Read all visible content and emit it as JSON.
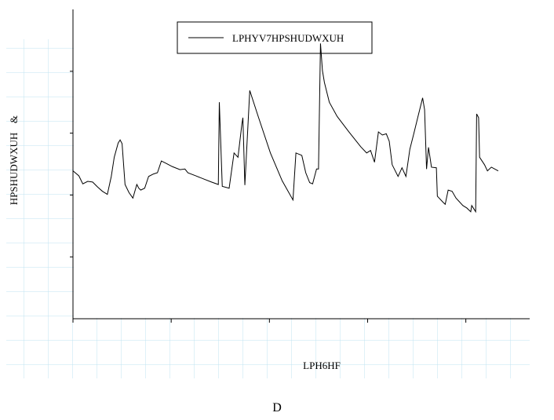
{
  "chart_data": {
    "type": "line",
    "x_label": "LPH6HF",
    "y_label": "HPSHUDWXUH",
    "y_label_mark": "&",
    "caption": "D",
    "xlim": [
      0,
      4.65
    ],
    "xticks": [
      0,
      1,
      2,
      3,
      4
    ],
    "ylim": [
      0,
      5
    ],
    "yticks": [
      1,
      2,
      3,
      4
    ],
    "legend": "top",
    "series": [
      {
        "name": "LPHYV7HPSHUDWXUH",
        "color": "#000000",
        "x": [
          0,
          0.06,
          0.1,
          0.15,
          0.2,
          0.25,
          0.3,
          0.35,
          0.39,
          0.42,
          0.46,
          0.48,
          0.5,
          0.53,
          0.57,
          0.61,
          0.65,
          0.67,
          0.69,
          0.73,
          0.77,
          0.82,
          0.86,
          0.9,
          0.95,
          1.01,
          1.09,
          1.14,
          1.17,
          1.25,
          1.33,
          1.41,
          1.48,
          1.49,
          1.52,
          1.59,
          1.64,
          1.68,
          1.72,
          1.73,
          1.75,
          1.8,
          1.89,
          2.01,
          2.13,
          2.24,
          2.27,
          2.33,
          2.37,
          2.41,
          2.44,
          2.48,
          2.5,
          2.52,
          2.54,
          2.56,
          2.61,
          2.69,
          2.81,
          2.93,
          2.99,
          3.03,
          3.07,
          3.11,
          3.15,
          3.19,
          3.22,
          3.25,
          3.31,
          3.35,
          3.39,
          3.43,
          3.47,
          3.51,
          3.56,
          3.58,
          3.6,
          3.62,
          3.65,
          3.7,
          3.71,
          3.77,
          3.79,
          3.82,
          3.86,
          3.9,
          3.97,
          4.01,
          4.05,
          4.06,
          4.1,
          4.11,
          4.13,
          4.14,
          4.19,
          4.22,
          4.26,
          4.33
        ],
        "values": [
          2.39,
          2.31,
          2.18,
          2.22,
          2.21,
          2.13,
          2.06,
          2.01,
          2.3,
          2.61,
          2.84,
          2.89,
          2.83,
          2.17,
          2.04,
          1.95,
          2.17,
          2.11,
          2.08,
          2.11,
          2.3,
          2.34,
          2.36,
          2.55,
          2.51,
          2.46,
          2.41,
          2.42,
          2.36,
          2.31,
          2.26,
          2.21,
          2.17,
          3.5,
          2.14,
          2.11,
          2.68,
          2.61,
          3.15,
          3.25,
          2.16,
          3.69,
          3.25,
          2.68,
          2.23,
          1.92,
          2.68,
          2.64,
          2.36,
          2.2,
          2.18,
          2.42,
          2.42,
          4.45,
          4.01,
          3.82,
          3.5,
          3.27,
          3.02,
          2.78,
          2.68,
          2.72,
          2.53,
          3.02,
          2.97,
          2.99,
          2.87,
          2.49,
          2.3,
          2.44,
          2.3,
          2.74,
          2.99,
          3.25,
          3.57,
          3.38,
          2.42,
          2.77,
          2.45,
          2.44,
          1.98,
          1.88,
          1.85,
          2.08,
          2.06,
          1.95,
          1.83,
          1.79,
          1.73,
          1.83,
          1.73,
          3.31,
          3.25,
          2.61,
          2.49,
          2.39,
          2.45,
          2.39
        ]
      }
    ]
  }
}
